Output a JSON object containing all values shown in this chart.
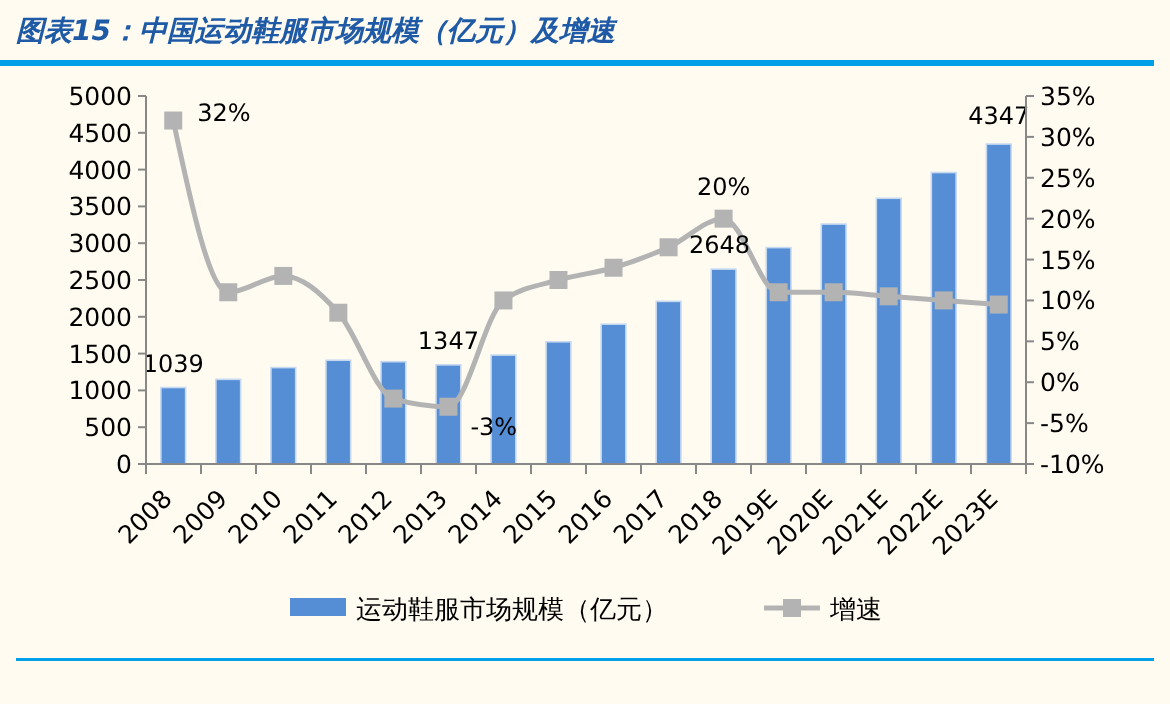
{
  "chart_data": {
    "type": "bar",
    "title": "图表15：中国运动鞋服市场规模（亿元）及增速",
    "categories": [
      "2008",
      "2009",
      "2010",
      "2011",
      "2012",
      "2013",
      "2014",
      "2015",
      "2016",
      "2017",
      "2018",
      "2019E",
      "2020E",
      "2021E",
      "2022E",
      "2023E"
    ],
    "series": [
      {
        "name": "运动鞋服市场规模（亿元）",
        "color": "#558ed5",
        "values": [
          1039,
          1150,
          1310,
          1410,
          1390,
          1347,
          1480,
          1660,
          1900,
          2210,
          2648,
          2940,
          3260,
          3610,
          3960,
          4347
        ],
        "value_labels": [
          "1039",
          null,
          null,
          null,
          null,
          "1347",
          null,
          null,
          null,
          null,
          "2648",
          null,
          null,
          null,
          null,
          "4347"
        ]
      },
      {
        "name": "增速",
        "type": "line",
        "axis": "y2",
        "color": "#b3b3b3",
        "values": [
          32,
          11,
          13,
          8.5,
          -2,
          -3,
          10,
          12.5,
          14,
          16.5,
          20,
          11,
          11,
          10.5,
          10,
          9.5
        ],
        "value_labels": [
          "32%",
          null,
          null,
          null,
          null,
          "-3%",
          null,
          null,
          null,
          null,
          "20%",
          null,
          null,
          null,
          null,
          null
        ]
      }
    ],
    "ylim": [
      0,
      5000
    ],
    "yticks": [
      0,
      500,
      1000,
      1500,
      2000,
      2500,
      3000,
      3500,
      4000,
      4500,
      5000
    ],
    "y2lim": [
      -10,
      35
    ],
    "y2ticks": [
      {
        "value": -10,
        "label": "-10%"
      },
      {
        "value": -5,
        "label": "-5%"
      },
      {
        "value": 0,
        "label": "0%"
      },
      {
        "value": 5,
        "label": "5%"
      },
      {
        "value": 10,
        "label": "10%"
      },
      {
        "value": 15,
        "label": "15%"
      },
      {
        "value": 20,
        "label": "20%"
      },
      {
        "value": 25,
        "label": "25%"
      },
      {
        "value": 30,
        "label": "30%"
      },
      {
        "value": 35,
        "label": "35%"
      }
    ],
    "legend": "bottom",
    "grid": false,
    "marker": "square"
  }
}
